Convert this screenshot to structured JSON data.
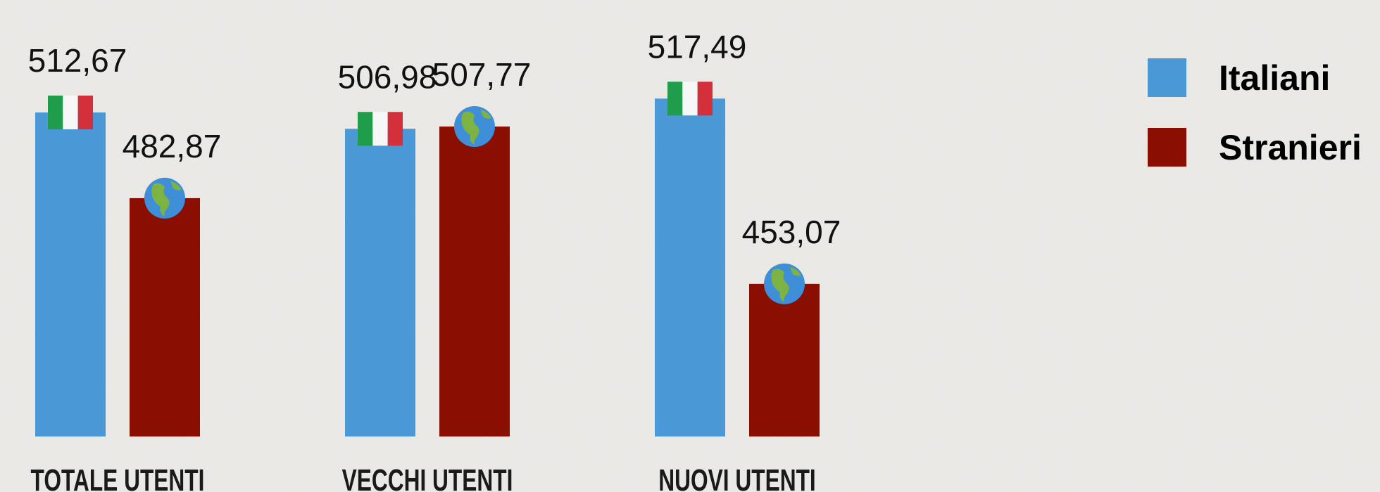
{
  "chart_data": {
    "type": "bar",
    "categories": [
      "TOTALE UTENTI",
      "VECCHI UTENTI",
      "NUOVI UTENTI"
    ],
    "series": [
      {
        "name": "Italiani",
        "color": "#4a98d6",
        "values": [
          512.67,
          506.98,
          517.49
        ],
        "value_labels": [
          "512,67",
          "506,98",
          "517,49"
        ]
      },
      {
        "name": "Stranieri",
        "color": "#8a0f00",
        "values": [
          482.87,
          507.77,
          453.07
        ],
        "value_labels": [
          "482,87",
          "507,77",
          "453,07"
        ]
      }
    ],
    "ylim": [
      400,
      520
    ],
    "legend": "top-right"
  }
}
